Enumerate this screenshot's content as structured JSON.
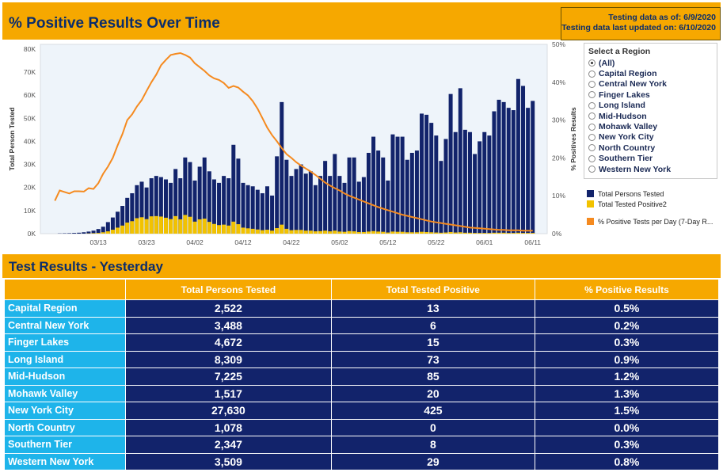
{
  "header": {
    "title": "% Positive Results Over Time",
    "testing_as_of": "Testing data as of: 6/9/2020",
    "last_updated": "Testing data last updated on: 6/10/2020"
  },
  "filter": {
    "title": "Select a Region",
    "selected": "(All)",
    "options": [
      "(All)",
      "Capital Region",
      "Central New York",
      "Finger Lakes",
      "Long Island",
      "Mid-Hudson",
      "Mohawk Valley",
      "New York City",
      "North Country",
      "Southern Tier",
      "Western New York"
    ]
  },
  "legend": [
    {
      "label": "Total Persons Tested",
      "color": "#12236b"
    },
    {
      "label": "Total Tested Positive2",
      "color": "#f2c200"
    },
    {
      "label": "% Positive Tests per Day (7-Day R...",
      "color": "#f58a1f"
    }
  ],
  "chart_data": {
    "type": "bar",
    "title": "% Positive Results Over Time",
    "ylabel": "Total Person Tested",
    "y2label": "% Positives Results",
    "ylim": [
      0,
      82000
    ],
    "y2lim": [
      0,
      50
    ],
    "yticks": [
      "0K",
      "10K",
      "20K",
      "30K",
      "40K",
      "50K",
      "60K",
      "70K",
      "80K"
    ],
    "y2ticks": [
      "0%",
      "10%",
      "20%",
      "30%",
      "40%",
      "50%"
    ],
    "xticks": [
      "03/13",
      "03/23",
      "04/02",
      "04/12",
      "04/22",
      "05/02",
      "05/12",
      "05/22",
      "06/01",
      "06/11"
    ],
    "x_start_date": "03/01",
    "x_end_date": "06/14",
    "grid": false,
    "legend_position": "right",
    "series": [
      {
        "name": "Total Persons Tested",
        "color": "#12236b",
        "start": "03/05",
        "values": [
          100,
          150,
          200,
          300,
          400,
          600,
          900,
          1300,
          2000,
          3000,
          5000,
          7000,
          9500,
          12000,
          15500,
          17500,
          21000,
          22500,
          20000,
          24000,
          25000,
          24500,
          23500,
          22000,
          28000,
          24000,
          33000,
          31000,
          23000,
          29000,
          33000,
          27000,
          23500,
          22000,
          25000,
          24000,
          38500,
          32500,
          22000,
          21000,
          20500,
          19000,
          17500,
          20500,
          16500,
          33500,
          57000,
          32000,
          25000,
          28000,
          30000,
          26000,
          27000,
          21000,
          25000,
          31500,
          25000,
          34500,
          25000,
          22000,
          33000,
          33000,
          22500,
          24500,
          35000,
          42000,
          36000,
          33000,
          23000,
          43000,
          42000,
          42000,
          32000,
          35000,
          36000,
          52000,
          51500,
          48000,
          42500,
          31500,
          41000,
          60500,
          44000,
          63000,
          45000,
          44000,
          34500,
          40000,
          44000,
          42500,
          53000,
          58000,
          57000,
          54500,
          53500,
          67000,
          64000,
          54500,
          57500
        ]
      },
      {
        "name": "Total Tested Positive2",
        "color": "#f2c200",
        "start": "03/05",
        "values": [
          0,
          0,
          0,
          0,
          0,
          0,
          100,
          200,
          300,
          600,
          1000,
          1700,
          2600,
          3500,
          4800,
          5400,
          6700,
          7100,
          6300,
          7500,
          7600,
          7400,
          6900,
          6300,
          7600,
          6200,
          8100,
          7300,
          5200,
          6200,
          6500,
          5100,
          4200,
          3700,
          3900,
          3500,
          5200,
          4100,
          2600,
          2300,
          2100,
          1800,
          1500,
          1700,
          1300,
          2400,
          3900,
          2100,
          1500,
          1600,
          1600,
          1300,
          1300,
          1000,
          1100,
          1300,
          1000,
          1300,
          900,
          800,
          1100,
          1000,
          700,
          700,
          900,
          1100,
          900,
          800,
          500,
          900,
          800,
          800,
          600,
          600,
          600,
          800,
          700,
          600,
          500,
          400,
          500,
          700,
          500,
          600,
          400,
          400,
          300,
          300,
          300,
          300,
          400,
          400,
          400,
          300,
          300,
          400,
          300,
          300,
          300
        ]
      },
      {
        "name": "% Positive Tests per Day (7-Day R...",
        "color": "#f58a1f",
        "axis": "y2",
        "start": "03/04",
        "values": [
          8.7,
          11.4,
          11.0,
          10.6,
          11.2,
          11.2,
          11.1,
          12.0,
          11.8,
          13.3,
          15.8,
          17.7,
          20.0,
          23.3,
          26.3,
          30.0,
          31.5,
          33.6,
          35.3,
          37.7,
          40.0,
          42.0,
          44.5,
          45.9,
          47.2,
          47.5,
          47.7,
          47.2,
          46.5,
          45.0,
          44.0,
          43.0,
          41.8,
          41.0,
          40.6,
          39.8,
          38.5,
          39.0,
          38.6,
          37.5,
          36.5,
          35.0,
          33.0,
          30.5,
          28.0,
          26.0,
          24.4,
          22.6,
          21.0,
          20.0,
          18.9,
          18.0,
          17.2,
          16.4,
          15.5,
          14.5,
          13.5,
          12.7,
          12.0,
          11.4,
          10.6,
          10.0,
          9.5,
          9.0,
          8.5,
          8.0,
          7.5,
          7.0,
          6.6,
          6.2,
          5.8,
          5.4,
          5.0,
          4.7,
          4.4,
          4.1,
          3.8,
          3.5,
          3.2,
          3.0,
          2.8,
          2.6,
          2.4,
          2.2,
          2.0,
          1.8,
          1.6,
          1.5,
          1.4,
          1.3,
          1.2,
          1.1,
          1.0,
          1.0,
          0.9,
          0.9,
          0.9,
          0.8,
          0.8,
          0.8
        ]
      }
    ]
  },
  "results": {
    "title": "Test Results - Yesterday",
    "columns": [
      "",
      "Total Persons Tested",
      "Total Tested Positive",
      "% Positive Results"
    ],
    "rows": [
      {
        "region": "Capital Region",
        "tested": "2,522",
        "positive": "13",
        "pct": "0.5%"
      },
      {
        "region": "Central New York",
        "tested": "3,488",
        "positive": "6",
        "pct": "0.2%"
      },
      {
        "region": "Finger Lakes",
        "tested": "4,672",
        "positive": "15",
        "pct": "0.3%"
      },
      {
        "region": "Long Island",
        "tested": "8,309",
        "positive": "73",
        "pct": "0.9%"
      },
      {
        "region": "Mid-Hudson",
        "tested": "7,225",
        "positive": "85",
        "pct": "1.2%"
      },
      {
        "region": "Mohawk Valley",
        "tested": "1,517",
        "positive": "20",
        "pct": "1.3%"
      },
      {
        "region": "New York City",
        "tested": "27,630",
        "positive": "425",
        "pct": "1.5%"
      },
      {
        "region": "North Country",
        "tested": "1,078",
        "positive": "0",
        "pct": "0.0%"
      },
      {
        "region": "Southern Tier",
        "tested": "2,347",
        "positive": "8",
        "pct": "0.3%"
      },
      {
        "region": "Western New York",
        "tested": "3,509",
        "positive": "29",
        "pct": "0.8%"
      }
    ]
  }
}
